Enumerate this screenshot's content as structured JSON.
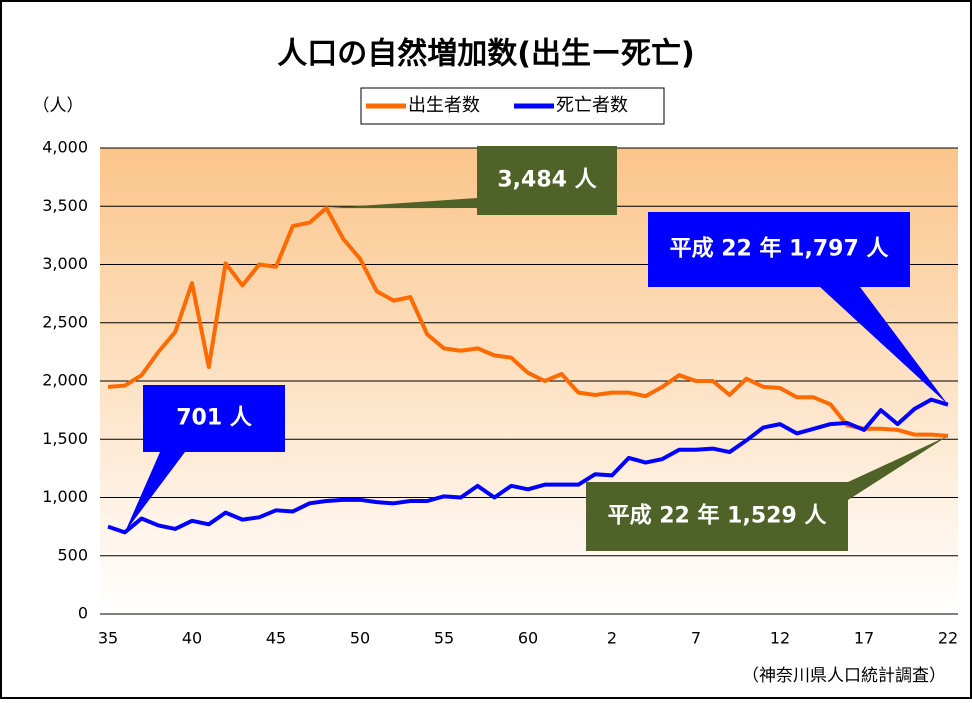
{
  "chart_data": {
    "type": "line",
    "title": "人口の自然増加数(出生ー死亡)",
    "y_label": "（人）",
    "source": "（神奈川県人口統計調査）",
    "categories": [
      "35",
      null,
      null,
      null,
      null,
      "40",
      null,
      null,
      null,
      null,
      "45",
      null,
      null,
      null,
      null,
      "50",
      null,
      null,
      null,
      null,
      "55",
      null,
      null,
      null,
      null,
      "60",
      null,
      null,
      null,
      null,
      "2",
      null,
      null,
      null,
      null,
      "7",
      null,
      null,
      null,
      null,
      "12",
      null,
      null,
      null,
      null,
      "17",
      null,
      null,
      null,
      null,
      "22"
    ],
    "series": [
      {
        "name": "出生者数",
        "color": "#ff6a00",
        "values": [
          1950,
          1960,
          2050,
          2250,
          2420,
          2840,
          2120,
          3010,
          2820,
          3000,
          2980,
          3330,
          3360,
          3484,
          3220,
          3050,
          2770,
          2690,
          2720,
          2400,
          2280,
          2260,
          2280,
          2220,
          2200,
          2070,
          2000,
          2060,
          1900,
          1880,
          1900,
          1900,
          1870,
          1950,
          2050,
          2000,
          2000,
          1880,
          2020,
          1950,
          1940,
          1860,
          1860,
          1800,
          1620,
          1590,
          1590,
          1580,
          1540,
          1540,
          1529
        ]
      },
      {
        "name": "死亡者数",
        "color": "#0000ff",
        "values": [
          750,
          701,
          820,
          760,
          730,
          800,
          770,
          870,
          810,
          830,
          890,
          880,
          950,
          970,
          980,
          980,
          960,
          950,
          970,
          970,
          1010,
          1000,
          1100,
          1000,
          1100,
          1070,
          1110,
          1110,
          1110,
          1200,
          1190,
          1340,
          1300,
          1330,
          1410,
          1410,
          1420,
          1390,
          1490,
          1600,
          1630,
          1550,
          1590,
          1630,
          1640,
          1580,
          1750,
          1630,
          1760,
          1840,
          1797
        ]
      }
    ],
    "annotations": [
      "3,484 人",
      "701 人",
      "平成 22 年 1,797 人",
      "平成 22 年 1,529 人"
    ],
    "ylim": [
      0,
      4000
    ],
    "yticks": [
      0,
      500,
      {
        "value": 1000,
        "label": "1,000"
      },
      {
        "value": 1500,
        "label": "1,500"
      },
      {
        "value": 2000,
        "label": "2,000"
      },
      {
        "value": 2500,
        "label": "2,500"
      },
      {
        "value": 3000,
        "label": "3,000"
      },
      {
        "value": 3500,
        "label": "3,500"
      },
      {
        "value": 4000,
        "label": "4,000"
      }
    ],
    "grid": true
  }
}
